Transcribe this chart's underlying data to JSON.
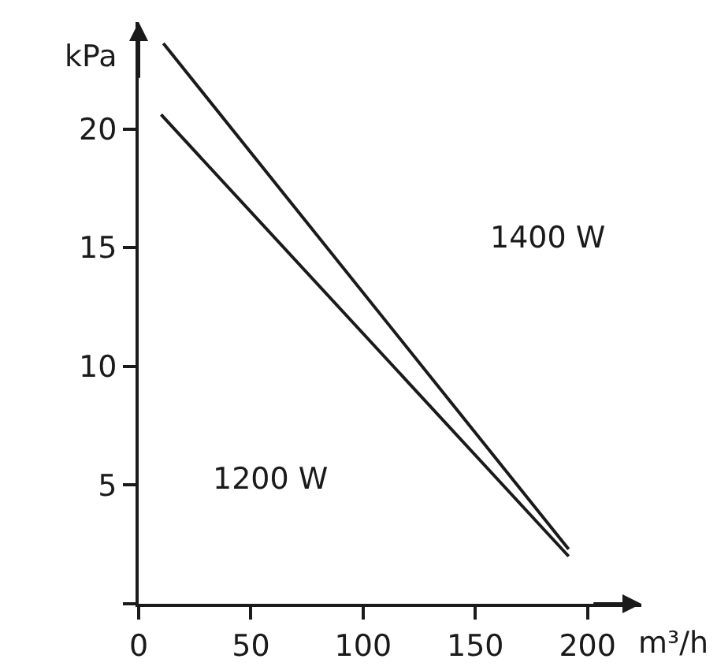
{
  "chart_data": {
    "type": "line",
    "xlabel": "m³/h",
    "ylabel": "kPa",
    "series": [
      {
        "color": "#1a1a1a",
        "x": [
          11,
          191.6
        ],
        "values": [
          23.6,
          2.3
        ]
      },
      {
        "color": "#1a1a1a",
        "x": [
          10,
          191.6
        ],
        "values": [
          20.6,
          2.0
        ]
      }
    ],
    "xlim": [
      0,
      224
    ],
    "ylim": [
      0,
      24.5
    ],
    "xticks": [
      0,
      50,
      100,
      150,
      200
    ],
    "yticks": [
      {
        "value": 0,
        "label": null
      },
      5,
      10,
      15,
      20
    ],
    "grid": false,
    "marker": "none",
    "line_style": "solid",
    "annotations": [
      "1400 W",
      "1200 W"
    ]
  }
}
